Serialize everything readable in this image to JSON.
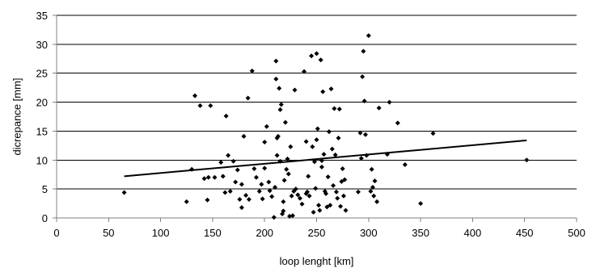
{
  "chart_data": {
    "type": "scatter",
    "title": "",
    "xlabel": "loop lenght [km]",
    "ylabel": "dicrepance [mm]",
    "xlim": [
      0,
      500
    ],
    "ylim": [
      0,
      35
    ],
    "xticks": [
      0,
      50,
      100,
      150,
      200,
      250,
      300,
      350,
      400,
      450,
      500
    ],
    "yticks": [
      0,
      5,
      10,
      15,
      20,
      25,
      30,
      35
    ],
    "x_tick_labels": [
      "0",
      "50",
      "100",
      "150",
      "200",
      "250",
      "300",
      "350",
      "400",
      "450",
      "500"
    ],
    "y_tick_labels": [
      "0",
      "5",
      "10",
      "15",
      "20",
      "25",
      "30",
      "35"
    ],
    "grid": "horizontal",
    "legend": "none",
    "marker": "diamond",
    "points": [
      [
        65,
        4.4
      ],
      [
        125,
        2.8
      ],
      [
        130,
        8.4
      ],
      [
        133,
        21.1
      ],
      [
        138,
        19.4
      ],
      [
        142,
        6.8
      ],
      [
        145,
        3.1
      ],
      [
        146,
        7.0
      ],
      [
        148,
        19.4
      ],
      [
        152,
        7.0
      ],
      [
        158,
        9.6
      ],
      [
        160,
        7.2
      ],
      [
        162,
        4.4
      ],
      [
        163,
        17.6
      ],
      [
        165,
        10.8
      ],
      [
        167,
        4.6
      ],
      [
        170,
        9.8
      ],
      [
        172,
        6.2
      ],
      [
        174,
        8.3
      ],
      [
        176,
        3.2
      ],
      [
        178,
        1.8
      ],
      [
        178,
        5.8
      ],
      [
        180,
        14.1
      ],
      [
        182,
        3.9
      ],
      [
        184,
        20.7
      ],
      [
        185,
        3.2
      ],
      [
        188,
        25.4
      ],
      [
        190,
        8.5
      ],
      [
        192,
        7.0
      ],
      [
        195,
        4.6
      ],
      [
        197,
        5.8
      ],
      [
        198,
        3.3
      ],
      [
        200,
        8.6
      ],
      [
        200,
        13.1
      ],
      [
        202,
        15.8
      ],
      [
        204,
        6.2
      ],
      [
        205,
        4.7
      ],
      [
        207,
        3.7
      ],
      [
        209,
        0.1
      ],
      [
        210,
        5.3
      ],
      [
        211,
        24.0
      ],
      [
        211,
        27.1
      ],
      [
        212,
        10.8
      ],
      [
        212,
        13.8
      ],
      [
        213,
        14.1
      ],
      [
        214,
        22.4
      ],
      [
        215,
        18.7
      ],
      [
        215,
        9.8
      ],
      [
        216,
        19.6
      ],
      [
        217,
        0.7
      ],
      [
        218,
        2.8
      ],
      [
        218,
        1.2
      ],
      [
        219,
        6.5
      ],
      [
        220,
        16.5
      ],
      [
        221,
        8.4
      ],
      [
        222,
        10.2
      ],
      [
        223,
        7.6
      ],
      [
        224,
        0.3
      ],
      [
        225,
        12.3
      ],
      [
        226,
        3.8
      ],
      [
        227,
        0.4
      ],
      [
        228,
        4.6
      ],
      [
        229,
        22.1
      ],
      [
        230,
        5.0
      ],
      [
        232,
        4.0
      ],
      [
        234,
        3.4
      ],
      [
        236,
        2.4
      ],
      [
        238,
        25.3
      ],
      [
        240,
        13.2
      ],
      [
        240,
        4.2
      ],
      [
        241,
        4.5
      ],
      [
        242,
        7.2
      ],
      [
        243,
        3.8
      ],
      [
        245,
        28.0
      ],
      [
        246,
        12.3
      ],
      [
        247,
        1.0
      ],
      [
        248,
        9.7
      ],
      [
        249,
        5.1
      ],
      [
        250,
        28.4
      ],
      [
        250,
        13.5
      ],
      [
        251,
        15.4
      ],
      [
        252,
        2.2
      ],
      [
        253,
        1.3
      ],
      [
        254,
        27.3
      ],
      [
        255,
        9.9
      ],
      [
        255,
        8.8
      ],
      [
        256,
        21.8
      ],
      [
        257,
        11.0
      ],
      [
        258,
        4.6
      ],
      [
        259,
        4.2
      ],
      [
        260,
        1.9
      ],
      [
        261,
        7.1
      ],
      [
        262,
        14.9
      ],
      [
        263,
        2.2
      ],
      [
        264,
        22.3
      ],
      [
        265,
        11.9
      ],
      [
        266,
        5.6
      ],
      [
        267,
        18.9
      ],
      [
        268,
        10.9
      ],
      [
        269,
        4.5
      ],
      [
        270,
        3.4
      ],
      [
        271,
        13.8
      ],
      [
        272,
        18.8
      ],
      [
        273,
        2.0
      ],
      [
        274,
        6.3
      ],
      [
        275,
        8.5
      ],
      [
        276,
        3.8
      ],
      [
        277,
        6.6
      ],
      [
        278,
        1.3
      ],
      [
        290,
        4.5
      ],
      [
        292,
        14.7
      ],
      [
        293,
        10.3
      ],
      [
        294,
        24.4
      ],
      [
        295,
        28.8
      ],
      [
        296,
        20.2
      ],
      [
        297,
        14.4
      ],
      [
        298,
        10.8
      ],
      [
        300,
        31.5
      ],
      [
        302,
        4.6
      ],
      [
        303,
        8.4
      ],
      [
        304,
        5.3
      ],
      [
        305,
        3.8
      ],
      [
        306,
        6.4
      ],
      [
        308,
        2.8
      ],
      [
        310,
        19.0
      ],
      [
        318,
        11.0
      ],
      [
        320,
        20.0
      ],
      [
        328,
        16.4
      ],
      [
        335,
        9.2
      ],
      [
        350,
        2.5
      ],
      [
        362,
        14.6
      ],
      [
        452,
        10.0
      ]
    ],
    "trendline": {
      "type": "linear",
      "x": [
        65,
        452
      ],
      "y": [
        7.2,
        13.4
      ]
    }
  }
}
